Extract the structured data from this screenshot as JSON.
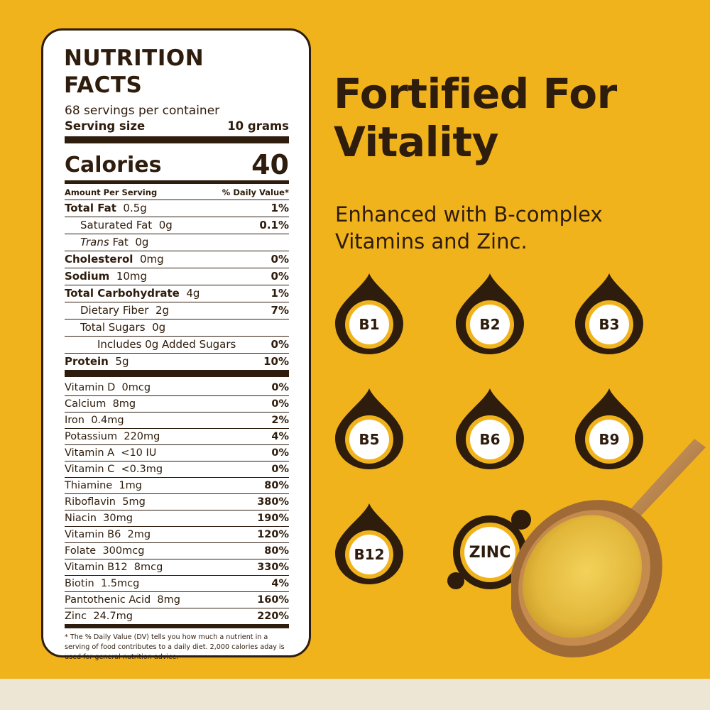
{
  "nutrition": {
    "title": "NUTRITION FACTS",
    "servings": "68 servings per container",
    "serving_size_label": "Serving size",
    "serving_size_value": "10 grams",
    "calories_label": "Calories",
    "calories_value": "40",
    "amount_per_serving": "Amount Per Serving",
    "daily_value_header": "% Daily Value*",
    "rows": [
      {
        "bold_name": "Total Fat",
        "amount": "0.5g",
        "dv": "1%"
      },
      {
        "name": "Saturated Fat",
        "amount": "0g",
        "dv": "0.1%"
      },
      {
        "italic_name": "Trans",
        "name": "Fat",
        "amount": "0g",
        "dv": ""
      },
      {
        "bold_name": "Cholesterol",
        "amount": "0mg",
        "dv": "0%"
      },
      {
        "bold_name": "Sodium",
        "amount": "10mg",
        "dv": "0%"
      },
      {
        "bold_name": "Total Carbohydrate",
        "amount": "4g",
        "dv": "1%"
      },
      {
        "name": "Dietary Fiber",
        "amount": "2g",
        "dv": "7%"
      },
      {
        "name": "Total Sugars",
        "amount": "0g",
        "dv": ""
      },
      {
        "name": "Includes 0g Added Sugars",
        "amount": "",
        "dv": "0%"
      },
      {
        "bold_name": "Protein",
        "amount": "5g",
        "dv": "10%"
      }
    ],
    "vitamins": [
      {
        "name": "Vitamin D",
        "amount": "0mcg",
        "dv": "0%"
      },
      {
        "name": "Calcium",
        "amount": "8mg",
        "dv": "0%"
      },
      {
        "name": "Iron",
        "amount": "0.4mg",
        "dv": "2%"
      },
      {
        "name": "Potassium",
        "amount": "220mg",
        "dv": "4%"
      },
      {
        "name": "Vitamin A",
        "amount": "<10 IU",
        "dv": "0%"
      },
      {
        "name": "Vitamin C",
        "amount": "<0.3mg",
        "dv": "0%"
      },
      {
        "name": "Thiamine",
        "amount": "1mg",
        "dv": "80%"
      },
      {
        "name": "Riboflavin",
        "amount": "5mg",
        "dv": "380%"
      },
      {
        "name": "Niacin",
        "amount": "30mg",
        "dv": "190%"
      },
      {
        "name": "Vitamin B6",
        "amount": "2mg",
        "dv": "120%"
      },
      {
        "name": "Folate",
        "amount": "300mcg",
        "dv": "80%"
      },
      {
        "name": "Vitamin B12",
        "amount": "8mcg",
        "dv": "330%"
      },
      {
        "name": "Biotin",
        "amount": "1.5mcg",
        "dv": "4%"
      },
      {
        "name": "Pantothenic Acid",
        "amount": "8mg",
        "dv": "160%"
      },
      {
        "name": "Zinc",
        "amount": "24.7mg",
        "dv": "220%"
      }
    ],
    "footnote": "* The % Daily Value (DV) tells you how much a nutrient in a serving of food contributes to a daily diet. 2,000 calories aday is used for general nutrition advice."
  },
  "headline": "Fortified For Vitality",
  "subtitle": "Enhanced with B-complex Vitamins and Zinc.",
  "badges": [
    "B1",
    "B2",
    "B3",
    "B5",
    "B6",
    "B9",
    "B12"
  ],
  "zinc_label": "ZINC",
  "colors": {
    "background": "#f1b31c",
    "brown": "#2e1c0c",
    "panel": "#ffffff",
    "badge_ring": "#f1b31c",
    "badge_inner": "#ffffff",
    "bottom_strip": "#ede6d4"
  },
  "icons": [
    "drop-badge-icon",
    "zinc-badge-icon",
    "wooden-spoon-with-powder-image"
  ]
}
